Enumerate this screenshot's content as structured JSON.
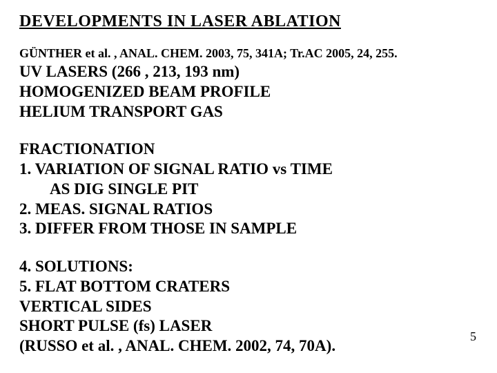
{
  "title": "DEVELOPMENTS  IN  LASER  ABLATION",
  "citation": "GÜNTHER et al. , ANAL.  CHEM.  2003, 75, 341A; Tr.AC 2005, 24, 255.",
  "intro": {
    "l1": "UV  LASERS  (266 ,  213,   193 nm)",
    "l2": "HOMOGENIZED  BEAM  PROFILE",
    "l3": "HELIUM  TRANSPORT  GAS"
  },
  "frac": {
    "head": "FRACTIONATION",
    "l1": "1.  VARIATION  OF  SIGNAL  RATIO  vs  TIME",
    "l1b": "AS  DIG  SINGLE  PIT",
    "l2": "2.  MEAS.  SIGNAL  RATIOS",
    "l3": "3.     DIFFER  FROM  THOSE  IN  SAMPLE"
  },
  "sol": {
    "l1": "4.  SOLUTIONS:",
    "l2": "5.  FLAT  BOTTOM  CRATERS",
    "l3": "VERTICAL  SIDES",
    "l4": "SHORT  PULSE (fs)  LASER",
    "l5": "(RUSSO et al. ,  ANAL.  CHEM. 2002, 74,  70A)."
  },
  "page_number": "5"
}
